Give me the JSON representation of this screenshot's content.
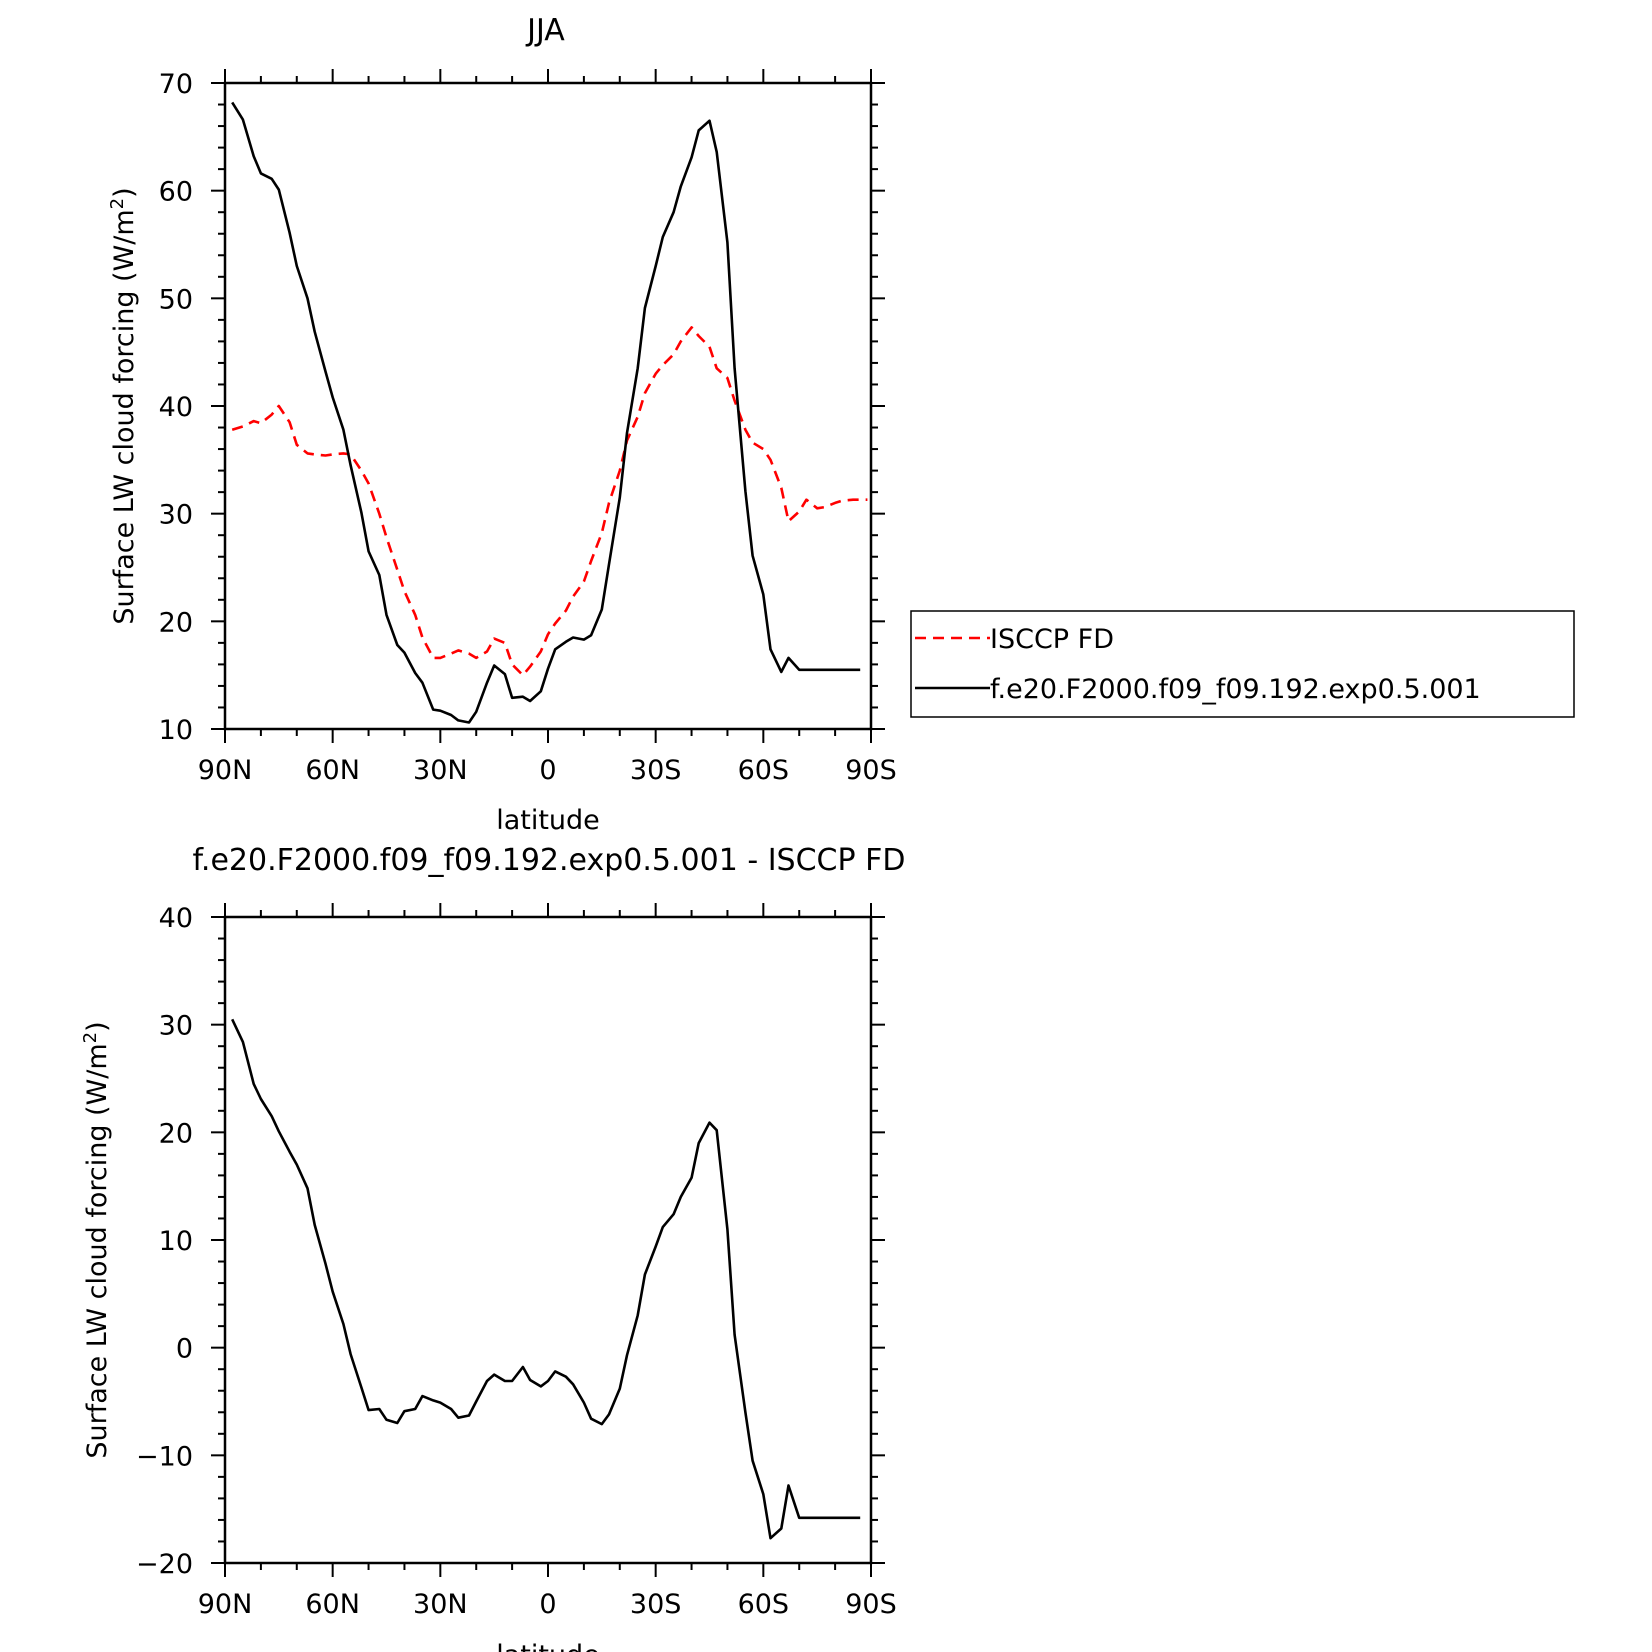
{
  "chart_data": [
    {
      "type": "line",
      "title": "JJA",
      "xlabel": "latitude",
      "ylabel": "Surface LW cloud forcing (W/m",
      "ylabel_sup": "2",
      "ylabel_close": ")",
      "ylim": [
        10,
        70
      ],
      "xlim": [
        90,
        -90
      ],
      "x_ticks": [
        90,
        60,
        30,
        0,
        -30,
        -60,
        -90
      ],
      "x_tick_labels": [
        "90N",
        "60N",
        "30N",
        "0",
        "30S",
        "60S",
        "90S"
      ],
      "y_ticks": [
        10,
        20,
        30,
        40,
        50,
        60,
        70
      ],
      "y_tick_labels": [
        "10",
        "20",
        "30",
        "40",
        "50",
        "60",
        "70"
      ],
      "legend": "right",
      "series": [
        {
          "name": "ISCCP FD",
          "color": "#ff0000",
          "dash": "dashed",
          "x": [
            88,
            85,
            82,
            80,
            77,
            75,
            72,
            70,
            67,
            65,
            62,
            60,
            57,
            55,
            52,
            50,
            47,
            45,
            42,
            40,
            37,
            35,
            32,
            30,
            27,
            25,
            22,
            20,
            17,
            15,
            12,
            10,
            7,
            5,
            2,
            0,
            -2,
            -5,
            -7,
            -10,
            -12,
            -15,
            -17,
            -20,
            -22,
            -25,
            -27,
            -30,
            -32,
            -35,
            -37,
            -40,
            -42,
            -45,
            -47,
            -50,
            -52,
            -55,
            -57,
            -60,
            -62,
            -65,
            -67,
            -70,
            -72,
            -75,
            -77,
            -80,
            -82,
            -85,
            -87,
            -89
          ],
          "y": [
            37.8,
            38.1,
            38.6,
            38.4,
            39.2,
            40.0,
            38.5,
            36.4,
            35.6,
            35.5,
            35.4,
            35.5,
            35.6,
            35.5,
            34.0,
            32.8,
            30.0,
            27.8,
            24.8,
            22.8,
            20.6,
            18.5,
            16.6,
            16.6,
            17.0,
            17.3,
            17.0,
            16.6,
            17.2,
            18.4,
            18.0,
            16.0,
            15.0,
            15.8,
            17.2,
            18.8,
            19.8,
            21.0,
            22.3,
            23.7,
            25.6,
            28.2,
            31.0,
            34.0,
            36.8,
            39.0,
            41.2,
            43.0,
            43.8,
            44.8,
            46.0,
            47.3,
            46.5,
            45.5,
            43.5,
            42.6,
            40.5,
            37.8,
            36.6,
            36.0,
            35.0,
            32.4,
            29.3,
            30.2,
            31.3,
            30.5,
            30.6,
            31.0,
            31.2,
            31.3,
            31.3,
            31.3
          ]
        },
        {
          "name": "f.e20.F2000.f09_f09.192.exp0.5.001",
          "color": "#000000",
          "dash": "solid",
          "x": [
            88,
            85,
            82,
            80,
            77,
            75,
            72,
            70,
            67,
            65,
            62,
            60,
            57,
            55,
            52,
            50,
            47,
            45,
            42,
            40,
            37,
            35,
            32,
            30,
            27,
            25,
            22,
            20,
            17,
            15,
            12,
            10,
            7,
            5,
            2,
            0,
            -2,
            -5,
            -7,
            -10,
            -12,
            -15,
            -17,
            -20,
            -22,
            -25,
            -27,
            -30,
            -32,
            -35,
            -37,
            -40,
            -42,
            -45,
            -47,
            -50,
            -52,
            -55,
            -57,
            -60,
            -62,
            -65,
            -67,
            -70,
            -72,
            -75,
            -77,
            -80,
            -82,
            -85,
            -87
          ],
          "y": [
            68.2,
            66.6,
            63.2,
            61.6,
            61.1,
            60.1,
            56.1,
            53.0,
            50.0,
            46.9,
            43.2,
            40.8,
            37.8,
            34.5,
            30.1,
            26.5,
            24.3,
            20.6,
            17.8,
            17.1,
            15.2,
            14.3,
            11.8,
            11.7,
            11.3,
            10.8,
            10.6,
            11.6,
            14.3,
            15.9,
            15.1,
            12.9,
            13.0,
            12.6,
            13.5,
            15.6,
            17.4,
            18.1,
            18.5,
            18.3,
            18.7,
            21.1,
            25.3,
            31.5,
            37.5,
            43.5,
            49.1,
            53.0,
            55.7,
            58.0,
            60.4,
            63.1,
            65.6,
            66.5,
            63.6,
            55.2,
            43.5,
            32.1,
            26.1,
            22.5,
            17.4,
            15.3,
            16.6,
            15.5,
            15.5,
            15.5,
            15.5,
            15.5,
            15.5,
            15.5,
            15.5
          ]
        }
      ]
    },
    {
      "type": "line",
      "title": "f.e20.F2000.f09_f09.192.exp0.5.001 - ISCCP FD",
      "xlabel": "latitude",
      "ylabel": "Surface LW cloud forcing (W/m",
      "ylabel_sup": "2",
      "ylabel_close": ")",
      "ylim": [
        -20,
        40
      ],
      "xlim": [
        90,
        -90
      ],
      "x_ticks": [
        90,
        60,
        30,
        0,
        -30,
        -60,
        -90
      ],
      "x_tick_labels": [
        "90N",
        "60N",
        "30N",
        "0",
        "30S",
        "60S",
        "90S"
      ],
      "y_ticks": [
        -20,
        -10,
        0,
        10,
        20,
        30,
        40
      ],
      "y_tick_labels": [
        "−20",
        "−10",
        "0",
        "10",
        "20",
        "30",
        "40"
      ],
      "legend": "none",
      "series": [
        {
          "color": "#000000",
          "dash": "solid",
          "x": [
            88,
            85,
            82,
            80,
            77,
            75,
            72,
            70,
            67,
            65,
            62,
            60,
            57,
            55,
            52,
            50,
            47,
            45,
            42,
            40,
            37,
            35,
            32,
            30,
            27,
            25,
            22,
            20,
            17,
            15,
            12,
            10,
            7,
            5,
            2,
            0,
            -2,
            -5,
            -7,
            -10,
            -12,
            -15,
            -17,
            -20,
            -22,
            -25,
            -27,
            -30,
            -32,
            -35,
            -37,
            -40,
            -42,
            -45,
            -47,
            -50,
            -52,
            -55,
            -57,
            -60,
            -62,
            -65,
            -67,
            -70,
            -72,
            -75,
            -77,
            -80,
            -82,
            -85,
            -87
          ],
          "y": [
            30.5,
            28.4,
            24.5,
            23.1,
            21.5,
            20.1,
            18.2,
            17.0,
            14.8,
            11.4,
            7.8,
            5.2,
            2.2,
            -0.6,
            -3.7,
            -5.8,
            -5.7,
            -6.7,
            -7.0,
            -5.9,
            -5.7,
            -4.5,
            -4.9,
            -5.1,
            -5.7,
            -6.5,
            -6.3,
            -5.0,
            -3.1,
            -2.5,
            -3.1,
            -3.1,
            -1.8,
            -3.0,
            -3.6,
            -3.1,
            -2.2,
            -2.7,
            -3.4,
            -5.1,
            -6.6,
            -7.1,
            -6.2,
            -3.8,
            -0.7,
            3.0,
            6.8,
            9.4,
            11.2,
            12.4,
            14.0,
            15.8,
            19.0,
            20.9,
            20.2,
            11.0,
            1.2,
            -6.0,
            -10.5,
            -13.6,
            -17.7,
            -16.8,
            -12.8,
            -15.8,
            -15.8,
            -15.8,
            -15.8,
            -15.8,
            -15.8,
            -15.8,
            -15.8
          ]
        }
      ]
    }
  ]
}
